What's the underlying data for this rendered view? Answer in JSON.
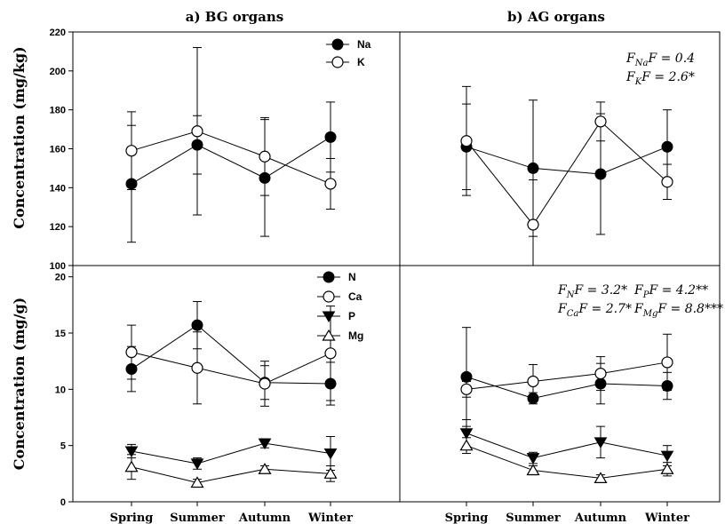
{
  "chart_data": [
    {
      "id": "bg-ions",
      "type": "line",
      "title": "a) BG organs",
      "ylabel": "Concentration (mg/kg)",
      "ylim": [
        100,
        220
      ],
      "yticks": [
        100,
        120,
        140,
        160,
        180,
        200,
        220
      ],
      "categories": [
        "Spring",
        "Summer",
        "Autumn",
        "Winter"
      ],
      "legend": "top-right",
      "annotations": [],
      "series": [
        {
          "name": "Na",
          "marker": "circle-filled",
          "values": [
            142,
            162,
            145,
            166
          ],
          "err": [
            30,
            15,
            30,
            18
          ]
        },
        {
          "name": "K",
          "marker": "circle-open",
          "values": [
            159,
            169,
            156,
            142
          ],
          "err": [
            20,
            43,
            20,
            13
          ]
        }
      ]
    },
    {
      "id": "ag-ions",
      "type": "line",
      "title": "b) AG organs",
      "ylim": [
        100,
        220
      ],
      "categories": [
        "Spring",
        "Summer",
        "Autumn",
        "Winter"
      ],
      "annotations": [
        "F = 0.4",
        "F = 2.6*"
      ],
      "series": [
        {
          "name": "Na",
          "marker": "circle-filled",
          "values": [
            161,
            150,
            147,
            161
          ],
          "err": [
            22,
            35,
            31,
            19
          ]
        },
        {
          "name": "K",
          "marker": "circle-open",
          "values": [
            164,
            121,
            174,
            143
          ],
          "err": [
            28,
            23,
            10,
            9
          ]
        }
      ]
    },
    {
      "id": "bg-nutrients",
      "type": "line",
      "ylabel": "Concentration (mg/g)",
      "ylim": [
        0,
        21
      ],
      "yticks": [
        0,
        5,
        10,
        15,
        20
      ],
      "categories": [
        "Spring",
        "Summer",
        "Autumn",
        "Winter"
      ],
      "legend": "top-right",
      "series": [
        {
          "name": "N",
          "marker": "circle-filled",
          "values": [
            11.8,
            15.7,
            10.6,
            10.5
          ],
          "err": [
            2.0,
            2.1,
            1.5,
            1.9
          ]
        },
        {
          "name": "Ca",
          "marker": "circle-open",
          "values": [
            13.3,
            11.9,
            10.5,
            13.2
          ],
          "err": [
            2.4,
            3.2,
            2.0,
            4.2
          ]
        },
        {
          "name": "P",
          "marker": "triangle-down-filled",
          "values": [
            4.5,
            3.4,
            5.2,
            4.3
          ],
          "err": [
            0.6,
            0.5,
            0.4,
            1.5
          ]
        },
        {
          "name": "Mg",
          "marker": "triangle-up-open",
          "values": [
            3.1,
            1.7,
            2.9,
            2.5
          ],
          "err": [
            1.1,
            0.3,
            0.3,
            0.7
          ]
        }
      ]
    },
    {
      "id": "ag-nutrients",
      "type": "line",
      "ylim": [
        0,
        21
      ],
      "categories": [
        "Spring",
        "Summer",
        "Autumn",
        "Winter"
      ],
      "annotations": [
        "F = 3.2*",
        "F = 4.2**",
        "F = 2.7*",
        "F = 8.8***"
      ],
      "series": [
        {
          "name": "N",
          "marker": "circle-filled",
          "values": [
            11.1,
            9.2,
            10.5,
            10.3
          ],
          "err": [
            4.4,
            0.5,
            1.8,
            1.2
          ]
        },
        {
          "name": "Ca",
          "marker": "circle-open",
          "values": [
            10.0,
            10.7,
            11.4,
            12.4
          ],
          "err": [
            0.7,
            1.5,
            1.5,
            2.5
          ]
        },
        {
          "name": "P",
          "marker": "triangle-down-filled",
          "values": [
            6.1,
            3.9,
            5.3,
            4.1
          ],
          "err": [
            1.2,
            0.5,
            1.4,
            0.9
          ]
        },
        {
          "name": "Mg",
          "marker": "triangle-up-open",
          "values": [
            5.0,
            2.8,
            2.1,
            2.9
          ],
          "err": [
            0.7,
            0.4,
            0.3,
            0.6
          ]
        }
      ]
    }
  ]
}
